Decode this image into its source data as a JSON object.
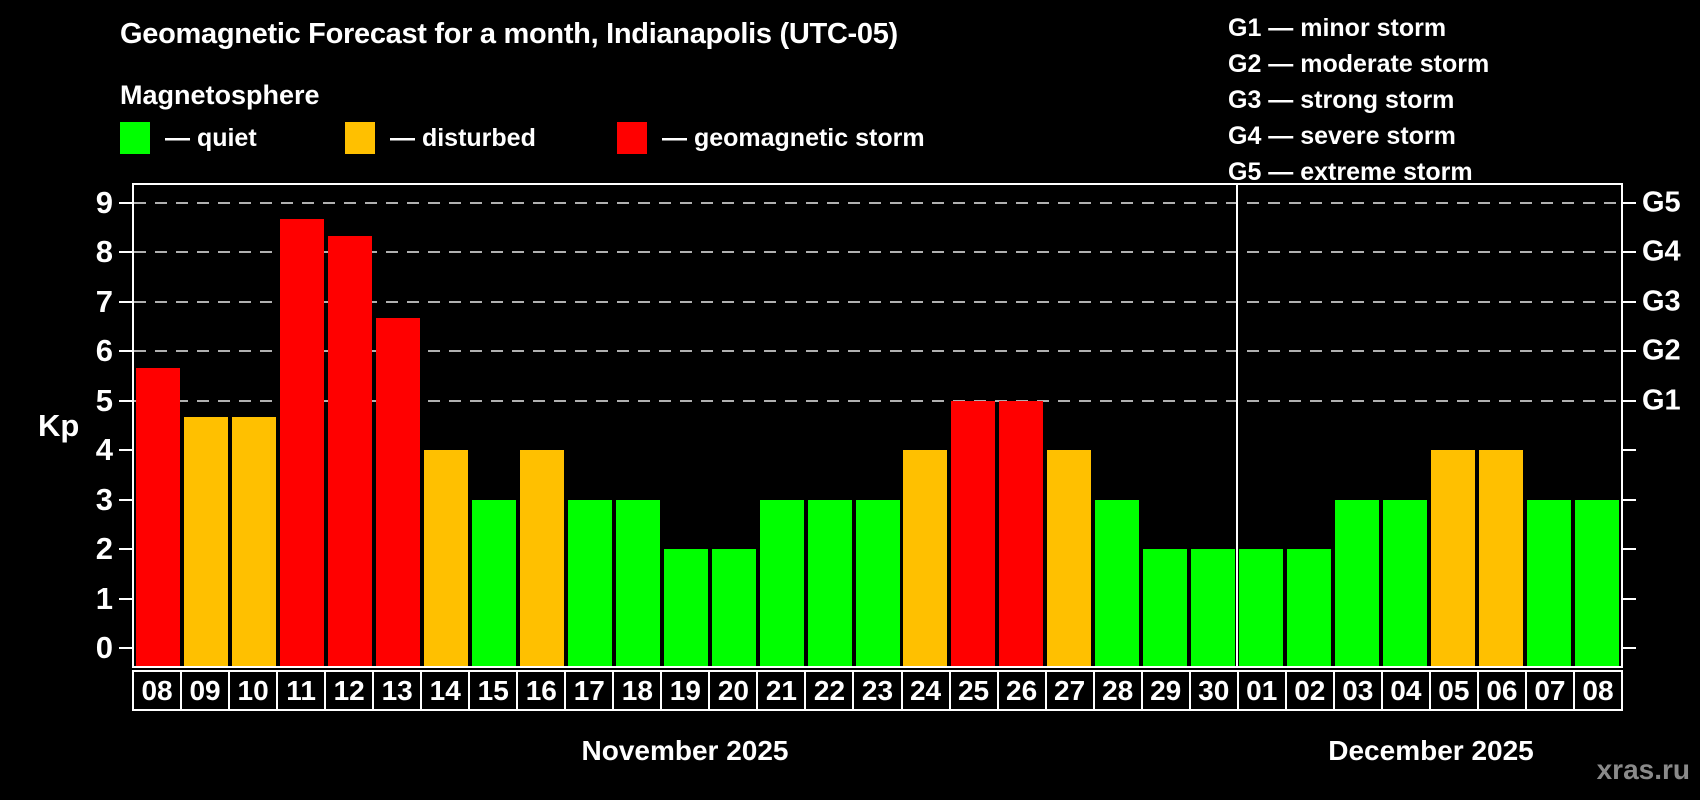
{
  "title": "Geomagnetic Forecast for a month, Indianapolis (UTC-05)",
  "subtitle": "Magnetosphere",
  "legend": {
    "items": [
      {
        "label": "— quiet",
        "status": "quiet"
      },
      {
        "label": "— disturbed",
        "status": "disturbed"
      },
      {
        "label": "— geomagnetic storm",
        "status": "storm"
      }
    ]
  },
  "g_legend": [
    "G1 — minor storm",
    "G2 — moderate storm",
    "G3 — strong storm",
    "G4 — severe storm",
    "G5 — extreme storm"
  ],
  "y_axis": {
    "label": "Kp",
    "ticks": [
      0,
      1,
      2,
      3,
      4,
      5,
      6,
      7,
      8,
      9
    ]
  },
  "right_axis": {
    "labels": [
      {
        "value": 5,
        "text": "G1"
      },
      {
        "value": 6,
        "text": "G2"
      },
      {
        "value": 7,
        "text": "G3"
      },
      {
        "value": 8,
        "text": "G4"
      },
      {
        "value": 9,
        "text": "G5"
      }
    ]
  },
  "months": [
    {
      "label": "November 2025",
      "days": 23
    },
    {
      "label": "December 2025",
      "days": 8
    }
  ],
  "watermark": "xras.ru",
  "colors": {
    "quiet": "#00ff00",
    "disturbed": "#ffc000",
    "storm": "#ff0000",
    "grid": "#b0b0b0",
    "axis": "#ffffff",
    "background": "#000000",
    "text": "#ffffff",
    "watermark": "#8a8a8a"
  },
  "chart_data": {
    "type": "bar",
    "title": "Geomagnetic Forecast for a month, Indianapolis (UTC-05)",
    "subtitle": "Magnetosphere",
    "xlabel": "",
    "ylabel": "Kp",
    "ylim": [
      0,
      9
    ],
    "yticks": [
      0,
      1,
      2,
      3,
      4,
      5,
      6,
      7,
      8,
      9
    ],
    "gridlines_at": [
      5,
      6,
      7,
      8,
      9
    ],
    "grid": "dashed horizontal lines at G1–G5 levels",
    "legend_position": "top-left",
    "categories": [
      "08",
      "09",
      "10",
      "11",
      "12",
      "13",
      "14",
      "15",
      "16",
      "17",
      "18",
      "19",
      "20",
      "21",
      "22",
      "23",
      "24",
      "25",
      "26",
      "27",
      "28",
      "29",
      "30",
      "01",
      "02",
      "03",
      "04",
      "05",
      "06",
      "07",
      "08"
    ],
    "values": [
      5.67,
      4.67,
      4.67,
      8.67,
      8.33,
      6.67,
      4,
      3,
      4,
      3,
      3,
      2,
      2,
      3,
      3,
      3,
      4,
      5,
      5,
      4,
      3,
      2,
      2,
      2,
      2,
      3,
      3,
      4,
      4,
      3,
      3
    ],
    "statuses": [
      "storm",
      "disturbed",
      "disturbed",
      "storm",
      "storm",
      "storm",
      "disturbed",
      "quiet",
      "disturbed",
      "quiet",
      "quiet",
      "quiet",
      "quiet",
      "quiet",
      "quiet",
      "quiet",
      "disturbed",
      "storm",
      "storm",
      "disturbed",
      "quiet",
      "quiet",
      "quiet",
      "quiet",
      "quiet",
      "quiet",
      "quiet",
      "disturbed",
      "disturbed",
      "quiet",
      "quiet"
    ]
  }
}
